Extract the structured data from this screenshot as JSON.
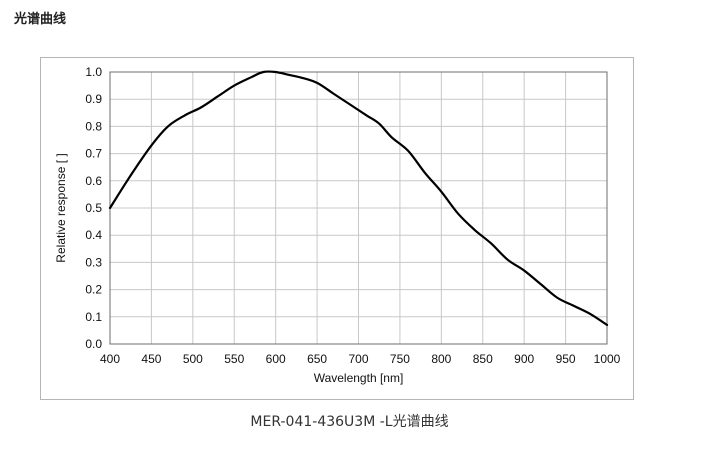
{
  "page": {
    "heading": "光谱曲线",
    "caption": "MER-041-436U3M -L光谱曲线"
  },
  "chart_data": {
    "type": "line",
    "title": "",
    "xlabel": "Wavelength [nm]",
    "ylabel": "Relative response [ ]",
    "xlim": [
      400,
      1000
    ],
    "ylim": [
      0.0,
      1.0
    ],
    "xticks": [
      "400",
      "450",
      "500",
      "550",
      "600",
      "650",
      "700",
      "750",
      "800",
      "850",
      "900",
      "950",
      "1000"
    ],
    "yticks": [
      "0.0",
      "0.1",
      "0.2",
      "0.3",
      "0.4",
      "0.5",
      "0.6",
      "0.7",
      "0.8",
      "0.9",
      "1.0"
    ],
    "grid": true,
    "legend": false,
    "line_color": "#000000",
    "grid_color": "#c8c8c8",
    "series": [
      {
        "x": [
          400,
          425,
          450,
          470,
          490,
          510,
          530,
          550,
          570,
          585,
          600,
          615,
          630,
          650,
          670,
          690,
          710,
          725,
          740,
          760,
          780,
          800,
          820,
          840,
          860,
          880,
          900,
          920,
          940,
          960,
          980,
          1000
        ],
        "values": [
          0.5,
          0.62,
          0.73,
          0.8,
          0.84,
          0.87,
          0.91,
          0.95,
          0.98,
          1.0,
          1.0,
          0.99,
          0.98,
          0.96,
          0.92,
          0.88,
          0.84,
          0.81,
          0.76,
          0.71,
          0.63,
          0.56,
          0.48,
          0.42,
          0.37,
          0.31,
          0.27,
          0.22,
          0.17,
          0.14,
          0.11,
          0.07
        ]
      }
    ]
  }
}
